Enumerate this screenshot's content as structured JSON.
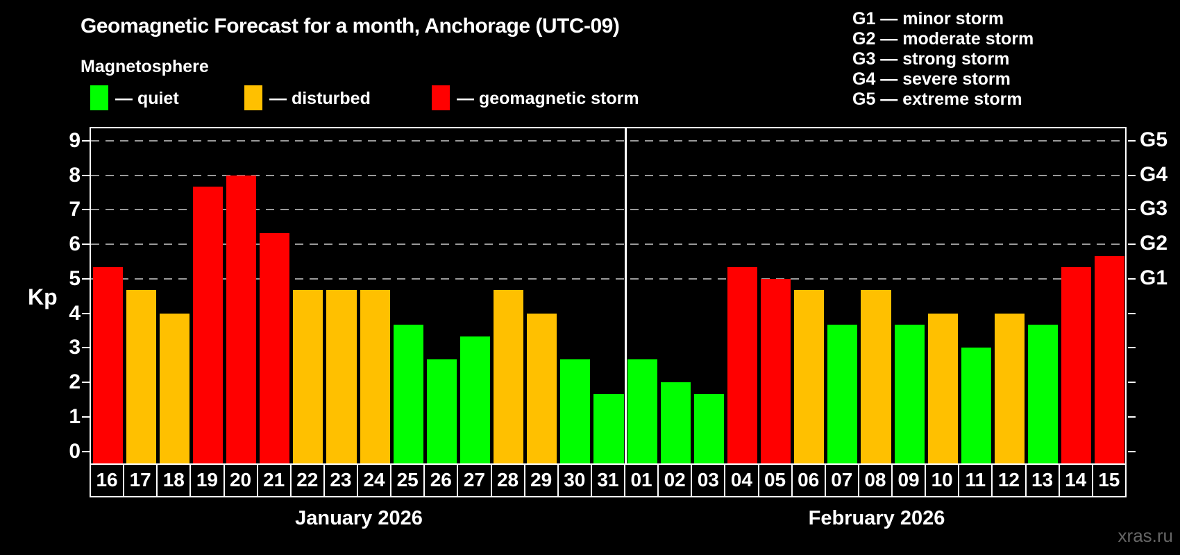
{
  "title": "Geomagnetic Forecast for a month, Anchorage (UTC-09)",
  "subtitle": "Magnetosphere",
  "legend": [
    {
      "key": "quiet",
      "label": "— quiet"
    },
    {
      "key": "disturbed",
      "label": "— disturbed"
    },
    {
      "key": "storm",
      "label": "— geomagnetic storm"
    }
  ],
  "storm_scale_legend": [
    "G1 — minor storm",
    "G2 — moderate storm",
    "G3 — strong storm",
    "G4 — severe storm",
    "G5 — extreme storm"
  ],
  "watermark": "xras.ru",
  "colors": {
    "quiet": "#00ff00",
    "disturbed": "#ffc000",
    "storm": "#ff0000",
    "grid": "#9a9a9a",
    "axis": "#ffffff",
    "watermark": "#666666"
  },
  "chart_data": {
    "type": "bar",
    "ylabel": "Kp",
    "ylim": [
      -0.35,
      9.4
    ],
    "yticks": [
      0,
      1,
      2,
      3,
      4,
      5,
      6,
      7,
      8,
      9
    ],
    "gridlines_at": [
      5,
      6,
      7,
      8,
      9
    ],
    "grid": "dashed, only at storm levels G1–G5",
    "legend_position": "top",
    "right_axis_labels": {
      "5": "G1",
      "6": "G2",
      "7": "G3",
      "8": "G4",
      "9": "G5"
    },
    "groups": [
      {
        "label": "January 2026",
        "days": [
          {
            "date": "16",
            "kp": 5.33,
            "status": "storm"
          },
          {
            "date": "17",
            "kp": 4.67,
            "status": "disturbed"
          },
          {
            "date": "18",
            "kp": 4.0,
            "status": "disturbed"
          },
          {
            "date": "19",
            "kp": 7.67,
            "status": "storm"
          },
          {
            "date": "20",
            "kp": 8.0,
            "status": "storm"
          },
          {
            "date": "21",
            "kp": 6.33,
            "status": "storm"
          },
          {
            "date": "22",
            "kp": 4.67,
            "status": "disturbed"
          },
          {
            "date": "23",
            "kp": 4.67,
            "status": "disturbed"
          },
          {
            "date": "24",
            "kp": 4.67,
            "status": "disturbed"
          },
          {
            "date": "25",
            "kp": 3.67,
            "status": "quiet"
          },
          {
            "date": "26",
            "kp": 2.67,
            "status": "quiet"
          },
          {
            "date": "27",
            "kp": 3.33,
            "status": "quiet"
          },
          {
            "date": "28",
            "kp": 4.67,
            "status": "disturbed"
          },
          {
            "date": "29",
            "kp": 4.0,
            "status": "disturbed"
          },
          {
            "date": "30",
            "kp": 2.67,
            "status": "quiet"
          },
          {
            "date": "31",
            "kp": 1.67,
            "status": "quiet"
          }
        ]
      },
      {
        "label": "February 2026",
        "days": [
          {
            "date": "01",
            "kp": 2.67,
            "status": "quiet"
          },
          {
            "date": "02",
            "kp": 2.0,
            "status": "quiet"
          },
          {
            "date": "03",
            "kp": 1.67,
            "status": "quiet"
          },
          {
            "date": "04",
            "kp": 5.33,
            "status": "storm"
          },
          {
            "date": "05",
            "kp": 5.0,
            "status": "storm"
          },
          {
            "date": "06",
            "kp": 4.67,
            "status": "disturbed"
          },
          {
            "date": "07",
            "kp": 3.67,
            "status": "quiet"
          },
          {
            "date": "08",
            "kp": 4.67,
            "status": "disturbed"
          },
          {
            "date": "09",
            "kp": 3.67,
            "status": "quiet"
          },
          {
            "date": "10",
            "kp": 4.0,
            "status": "disturbed"
          },
          {
            "date": "11",
            "kp": 3.0,
            "status": "quiet"
          },
          {
            "date": "12",
            "kp": 4.0,
            "status": "disturbed"
          },
          {
            "date": "13",
            "kp": 3.67,
            "status": "quiet"
          },
          {
            "date": "14",
            "kp": 5.33,
            "status": "storm"
          },
          {
            "date": "15",
            "kp": 5.67,
            "status": "storm"
          }
        ]
      }
    ]
  }
}
